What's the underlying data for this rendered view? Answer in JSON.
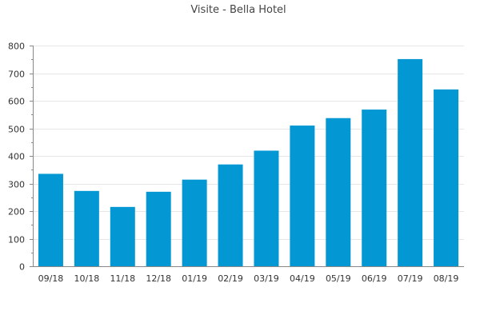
{
  "chart_data": {
    "type": "bar",
    "title": "Visite - Bella Hotel",
    "xlabel": "",
    "ylabel": "",
    "categories": [
      "09/18",
      "10/18",
      "11/18",
      "12/18",
      "01/19",
      "02/19",
      "03/19",
      "04/19",
      "05/19",
      "06/19",
      "07/19",
      "08/19"
    ],
    "values": [
      335,
      273,
      215,
      270,
      314,
      369,
      419,
      510,
      537,
      568,
      751,
      641
    ],
    "ylim": [
      0,
      800
    ],
    "yticks": [
      0,
      100,
      200,
      300,
      400,
      500,
      600,
      700,
      800
    ],
    "grid": true,
    "legend": "none",
    "bar_color": "#0398d4"
  }
}
